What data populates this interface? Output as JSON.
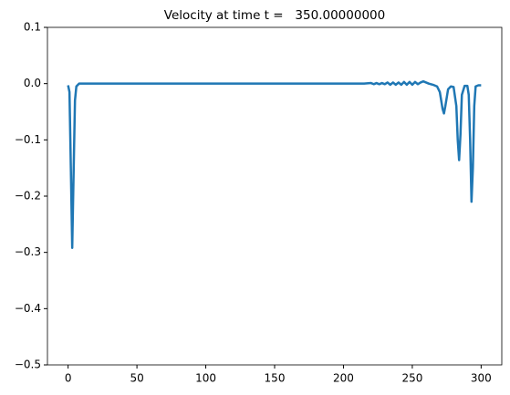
{
  "chart_data": {
    "type": "line",
    "title": "Velocity at time t =   350.00000000",
    "x": [
      0,
      1,
      2,
      3,
      4,
      5,
      6,
      8,
      50,
      100,
      150,
      200,
      215,
      220,
      222,
      224,
      226,
      228,
      230,
      232,
      234,
      236,
      238,
      240,
      242,
      244,
      246,
      248,
      250,
      252,
      254,
      256,
      258,
      260,
      262,
      265,
      268,
      270,
      272,
      273,
      274,
      276,
      278,
      280,
      282,
      283,
      284,
      285,
      286,
      288,
      290,
      291,
      292,
      293,
      294,
      295,
      296,
      298,
      300
    ],
    "series": [
      {
        "color": "#1f77b4",
        "values": [
          -0.003,
          -0.015,
          -0.15,
          -0.292,
          -0.16,
          -0.03,
          -0.005,
          0,
          0,
          0,
          0,
          0,
          0,
          0.001,
          -0.001,
          0.001,
          -0.001,
          0.001,
          -0.001,
          0.002,
          -0.002,
          0.002,
          -0.002,
          0.002,
          -0.002,
          0.003,
          -0.002,
          0.003,
          -0.002,
          0.003,
          -0.001,
          0.002,
          0.004,
          0.002,
          0,
          -0.002,
          -0.005,
          -0.015,
          -0.045,
          -0.053,
          -0.04,
          -0.01,
          -0.005,
          -0.006,
          -0.04,
          -0.1,
          -0.136,
          -0.09,
          -0.02,
          -0.004,
          -0.004,
          -0.02,
          -0.1,
          -0.21,
          -0.15,
          -0.04,
          -0.005,
          -0.003,
          -0.003
        ]
      }
    ],
    "xlim": [
      -15,
      315
    ],
    "xticks": [
      0,
      50,
      100,
      150,
      200,
      250,
      300
    ],
    "ylim": [
      -0.5,
      0.1
    ],
    "yticks": [
      {
        "value": -0.5,
        "label": "−0.5"
      },
      {
        "value": -0.4,
        "label": "−0.4"
      },
      {
        "value": -0.3,
        "label": "−0.3"
      },
      {
        "value": -0.2,
        "label": "−0.2"
      },
      {
        "value": -0.1,
        "label": "−0.1"
      },
      {
        "value": 0,
        "label": "0.0"
      },
      0.1
    ],
    "grid": false
  }
}
